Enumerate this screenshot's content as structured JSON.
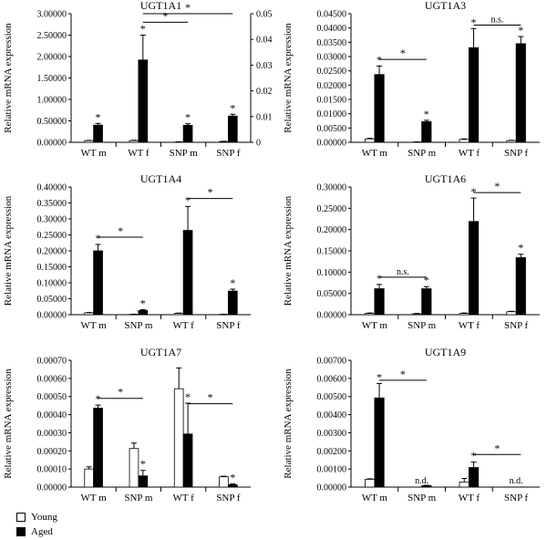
{
  "legend": {
    "young_label": "Young",
    "aged_label": "Aged"
  },
  "colors": {
    "young": "#ffffff",
    "aged": "#000000",
    "stroke": "#000000"
  },
  "chart_data": [
    {
      "type": "bar",
      "title": "UGT1A1",
      "ylabel": "Relative mRNA expression",
      "categories": [
        "WT m",
        "WT f",
        "SNP m",
        "SNP f"
      ],
      "series": [
        {
          "name": "Young",
          "values": [
            0.04,
            0.04,
            0.0001,
            0.0003
          ],
          "errors": [
            0.005,
            0.008,
            0.0001,
            0.0001
          ]
        },
        {
          "name": "Aged",
          "values": [
            0.4,
            1.92,
            0.0066,
            0.0102
          ],
          "errors": [
            0.04,
            0.58,
            0.0006,
            0.0007
          ]
        }
      ],
      "series_axis": [
        [
          "left",
          "left"
        ],
        [
          "left",
          "left"
        ],
        [
          "right",
          "right"
        ],
        [
          "right",
          "right"
        ]
      ],
      "ylim": [
        0,
        3.0
      ],
      "yticks": [
        "0.00000",
        "0.50000",
        "1.00000",
        "1.50000",
        "2.00000",
        "2.50000",
        "3.00000"
      ],
      "y2lim": [
        0,
        0.05
      ],
      "y2ticks": [
        "0",
        "0.01",
        "0.02",
        "0.03",
        "0.04",
        "0.05"
      ],
      "labels": [
        {
          "text": "",
          "cat": 0,
          "series": 0
        },
        {
          "text": "*",
          "cat": 0,
          "series": 1
        },
        {
          "text": "*",
          "cat": 1,
          "series": 1
        },
        {
          "text": "*",
          "cat": 2,
          "series": 1
        },
        {
          "text": "*",
          "cat": 3,
          "series": 1
        }
      ],
      "brackets": [
        {
          "from": 1,
          "to": 2,
          "label": "*",
          "level": 2.8
        },
        {
          "from": 1,
          "to": 3,
          "label": "*",
          "level": 3.0
        }
      ],
      "bracket_axis": "left"
    },
    {
      "type": "bar",
      "title": "UGT1A3",
      "ylabel": "Relative mRNA expression",
      "categories": [
        "WT m",
        "SNP m",
        "WT f",
        "SNP f"
      ],
      "series": [
        {
          "name": "Young",
          "values": [
            0.0012,
            0.0001,
            0.001,
            0.0006
          ],
          "errors": [
            0.0002,
            5e-05,
            0.0002,
            0.0001
          ]
        },
        {
          "name": "Aged",
          "values": [
            0.0237,
            0.0072,
            0.0331,
            0.0345
          ],
          "errors": [
            0.003,
            0.0005,
            0.0067,
            0.0025
          ]
        }
      ],
      "ylim": [
        0,
        0.045
      ],
      "yticks": [
        "0.00000",
        "0.00500",
        "0.01000",
        "0.01500",
        "0.02000",
        "0.02500",
        "0.03000",
        "0.03500",
        "0.04000",
        "0.04500"
      ],
      "labels": [
        {
          "text": "*",
          "cat": 0,
          "series": 1
        },
        {
          "text": "*",
          "cat": 1,
          "series": 1
        },
        {
          "text": "*",
          "cat": 2,
          "series": 1
        },
        {
          "text": "*",
          "cat": 3,
          "series": 1
        }
      ],
      "brackets": [
        {
          "from": 0,
          "to": 1,
          "label": "*",
          "level": 0.029
        },
        {
          "from": 2,
          "to": 3,
          "label": "n.s.",
          "level": 0.041
        }
      ]
    },
    {
      "type": "bar",
      "title": "UGT1A4",
      "ylabel": "Relative mRNA expression",
      "categories": [
        "WT m",
        "SNP m",
        "WT f",
        "SNP f"
      ],
      "series": [
        {
          "name": "Young",
          "values": [
            0.006,
            0.001,
            0.004,
            0.001
          ],
          "errors": [
            0.001,
            0.0005,
            0.001,
            0.0005
          ]
        },
        {
          "name": "Aged",
          "values": [
            0.2,
            0.013,
            0.264,
            0.074
          ],
          "errors": [
            0.02,
            0.003,
            0.075,
            0.006
          ]
        }
      ],
      "ylim": [
        0,
        0.4
      ],
      "yticks": [
        "0.00000",
        "0.05000",
        "0.10000",
        "0.15000",
        "0.20000",
        "0.25000",
        "0.30000",
        "0.35000",
        "0.40000"
      ],
      "labels": [
        {
          "text": "*",
          "cat": 0,
          "series": 1
        },
        {
          "text": "*",
          "cat": 1,
          "series": 1
        },
        {
          "text": "*",
          "cat": 2,
          "series": 1
        },
        {
          "text": "*",
          "cat": 3,
          "series": 1
        }
      ],
      "brackets": [
        {
          "from": 0,
          "to": 1,
          "label": "*",
          "level": 0.243
        },
        {
          "from": 2,
          "to": 3,
          "label": "*",
          "level": 0.364
        }
      ]
    },
    {
      "type": "bar",
      "title": "UGT1A6",
      "ylabel": "Relative mRNA expression",
      "categories": [
        "WT m",
        "SNP m",
        "WT f",
        "SNP f"
      ],
      "series": [
        {
          "name": "Young",
          "values": [
            0.003,
            0.002,
            0.003,
            0.007
          ],
          "errors": [
            0.001,
            0.001,
            0.001,
            0.001
          ]
        },
        {
          "name": "Aged",
          "values": [
            0.061,
            0.061,
            0.219,
            0.134
          ],
          "errors": [
            0.01,
            0.005,
            0.055,
            0.008
          ]
        }
      ],
      "ylim": [
        0,
        0.3
      ],
      "yticks": [
        "0.00000",
        "0.05000",
        "0.10000",
        "0.15000",
        "0.20000",
        "0.25000",
        "0.30000"
      ],
      "labels": [
        {
          "text": "*",
          "cat": 0,
          "series": 1
        },
        {
          "text": "*",
          "cat": 1,
          "series": 1
        },
        {
          "text": "*",
          "cat": 2,
          "series": 1
        },
        {
          "text": "*",
          "cat": 3,
          "series": 1
        }
      ],
      "brackets": [
        {
          "from": 0,
          "to": 1,
          "label": "n.s.",
          "level": 0.088
        },
        {
          "from": 2,
          "to": 3,
          "label": "*",
          "level": 0.287
        }
      ]
    },
    {
      "type": "bar",
      "title": "UGT1A7",
      "ylabel": "Relative mRNA expression",
      "categories": [
        "WT m",
        "SNP m",
        "WT f",
        "SNP f"
      ],
      "series": [
        {
          "name": "Young",
          "values": [
            0.0001,
            0.000213,
            0.000543,
            5.7e-05
          ],
          "errors": [
            1.2e-05,
            3e-05,
            0.000115,
            3e-06
          ]
        },
        {
          "name": "Aged",
          "values": [
            0.000436,
            6.2e-05,
            0.000293,
            1.3e-05
          ],
          "errors": [
            1.7e-05,
            3e-05,
            0.00017,
            5e-06
          ]
        }
      ],
      "ylim": [
        0,
        0.0007
      ],
      "yticks": [
        "0.00000",
        "0.00010",
        "0.00020",
        "0.00030",
        "0.00040",
        "0.00050",
        "0.00060",
        "0.00070"
      ],
      "labels": [
        {
          "text": "*",
          "cat": 0,
          "series": 1
        },
        {
          "text": "*",
          "cat": 1,
          "series": 1
        },
        {
          "text": "*",
          "cat": 2,
          "series": 1
        },
        {
          "text": "*",
          "cat": 3,
          "series": 1
        }
      ],
      "brackets": [
        {
          "from": 0,
          "to": 1,
          "label": "*",
          "level": 0.00049
        },
        {
          "from": 2,
          "to": 3,
          "label": "*",
          "level": 0.00046
        }
      ]
    },
    {
      "type": "bar",
      "title": "UGT1A9",
      "ylabel": "Relative mRNA expression",
      "categories": [
        "WT m",
        "SNP m",
        "WT f",
        "SNP f"
      ],
      "series": [
        {
          "name": "Young",
          "values": [
            0.00043,
            0,
            0.00028,
            0
          ],
          "errors": [
            3e-05,
            0,
            0.0002,
            0
          ]
        },
        {
          "name": "Aged",
          "values": [
            0.00492,
            8e-05,
            0.00108,
            0
          ],
          "errors": [
            0.0008,
            2e-05,
            0.0003,
            0
          ]
        }
      ],
      "ylim": [
        0,
        0.007
      ],
      "yticks": [
        "0.00000",
        "0.00100",
        "0.00200",
        "0.00300",
        "0.00400",
        "0.00500",
        "0.00600",
        "0.00700"
      ],
      "labels": [
        {
          "text": "*",
          "cat": 0,
          "series": 1
        },
        {
          "text": "n.d.",
          "cat": 1,
          "series": 0
        },
        {
          "text": "*",
          "cat": 2,
          "series": 1
        },
        {
          "text": "n.d.",
          "cat": 3,
          "series": 0
        }
      ],
      "brackets": [
        {
          "from": 0,
          "to": 1,
          "label": "*",
          "level": 0.0059
        },
        {
          "from": 2,
          "to": 3,
          "label": "*",
          "level": 0.0018
        }
      ]
    }
  ]
}
